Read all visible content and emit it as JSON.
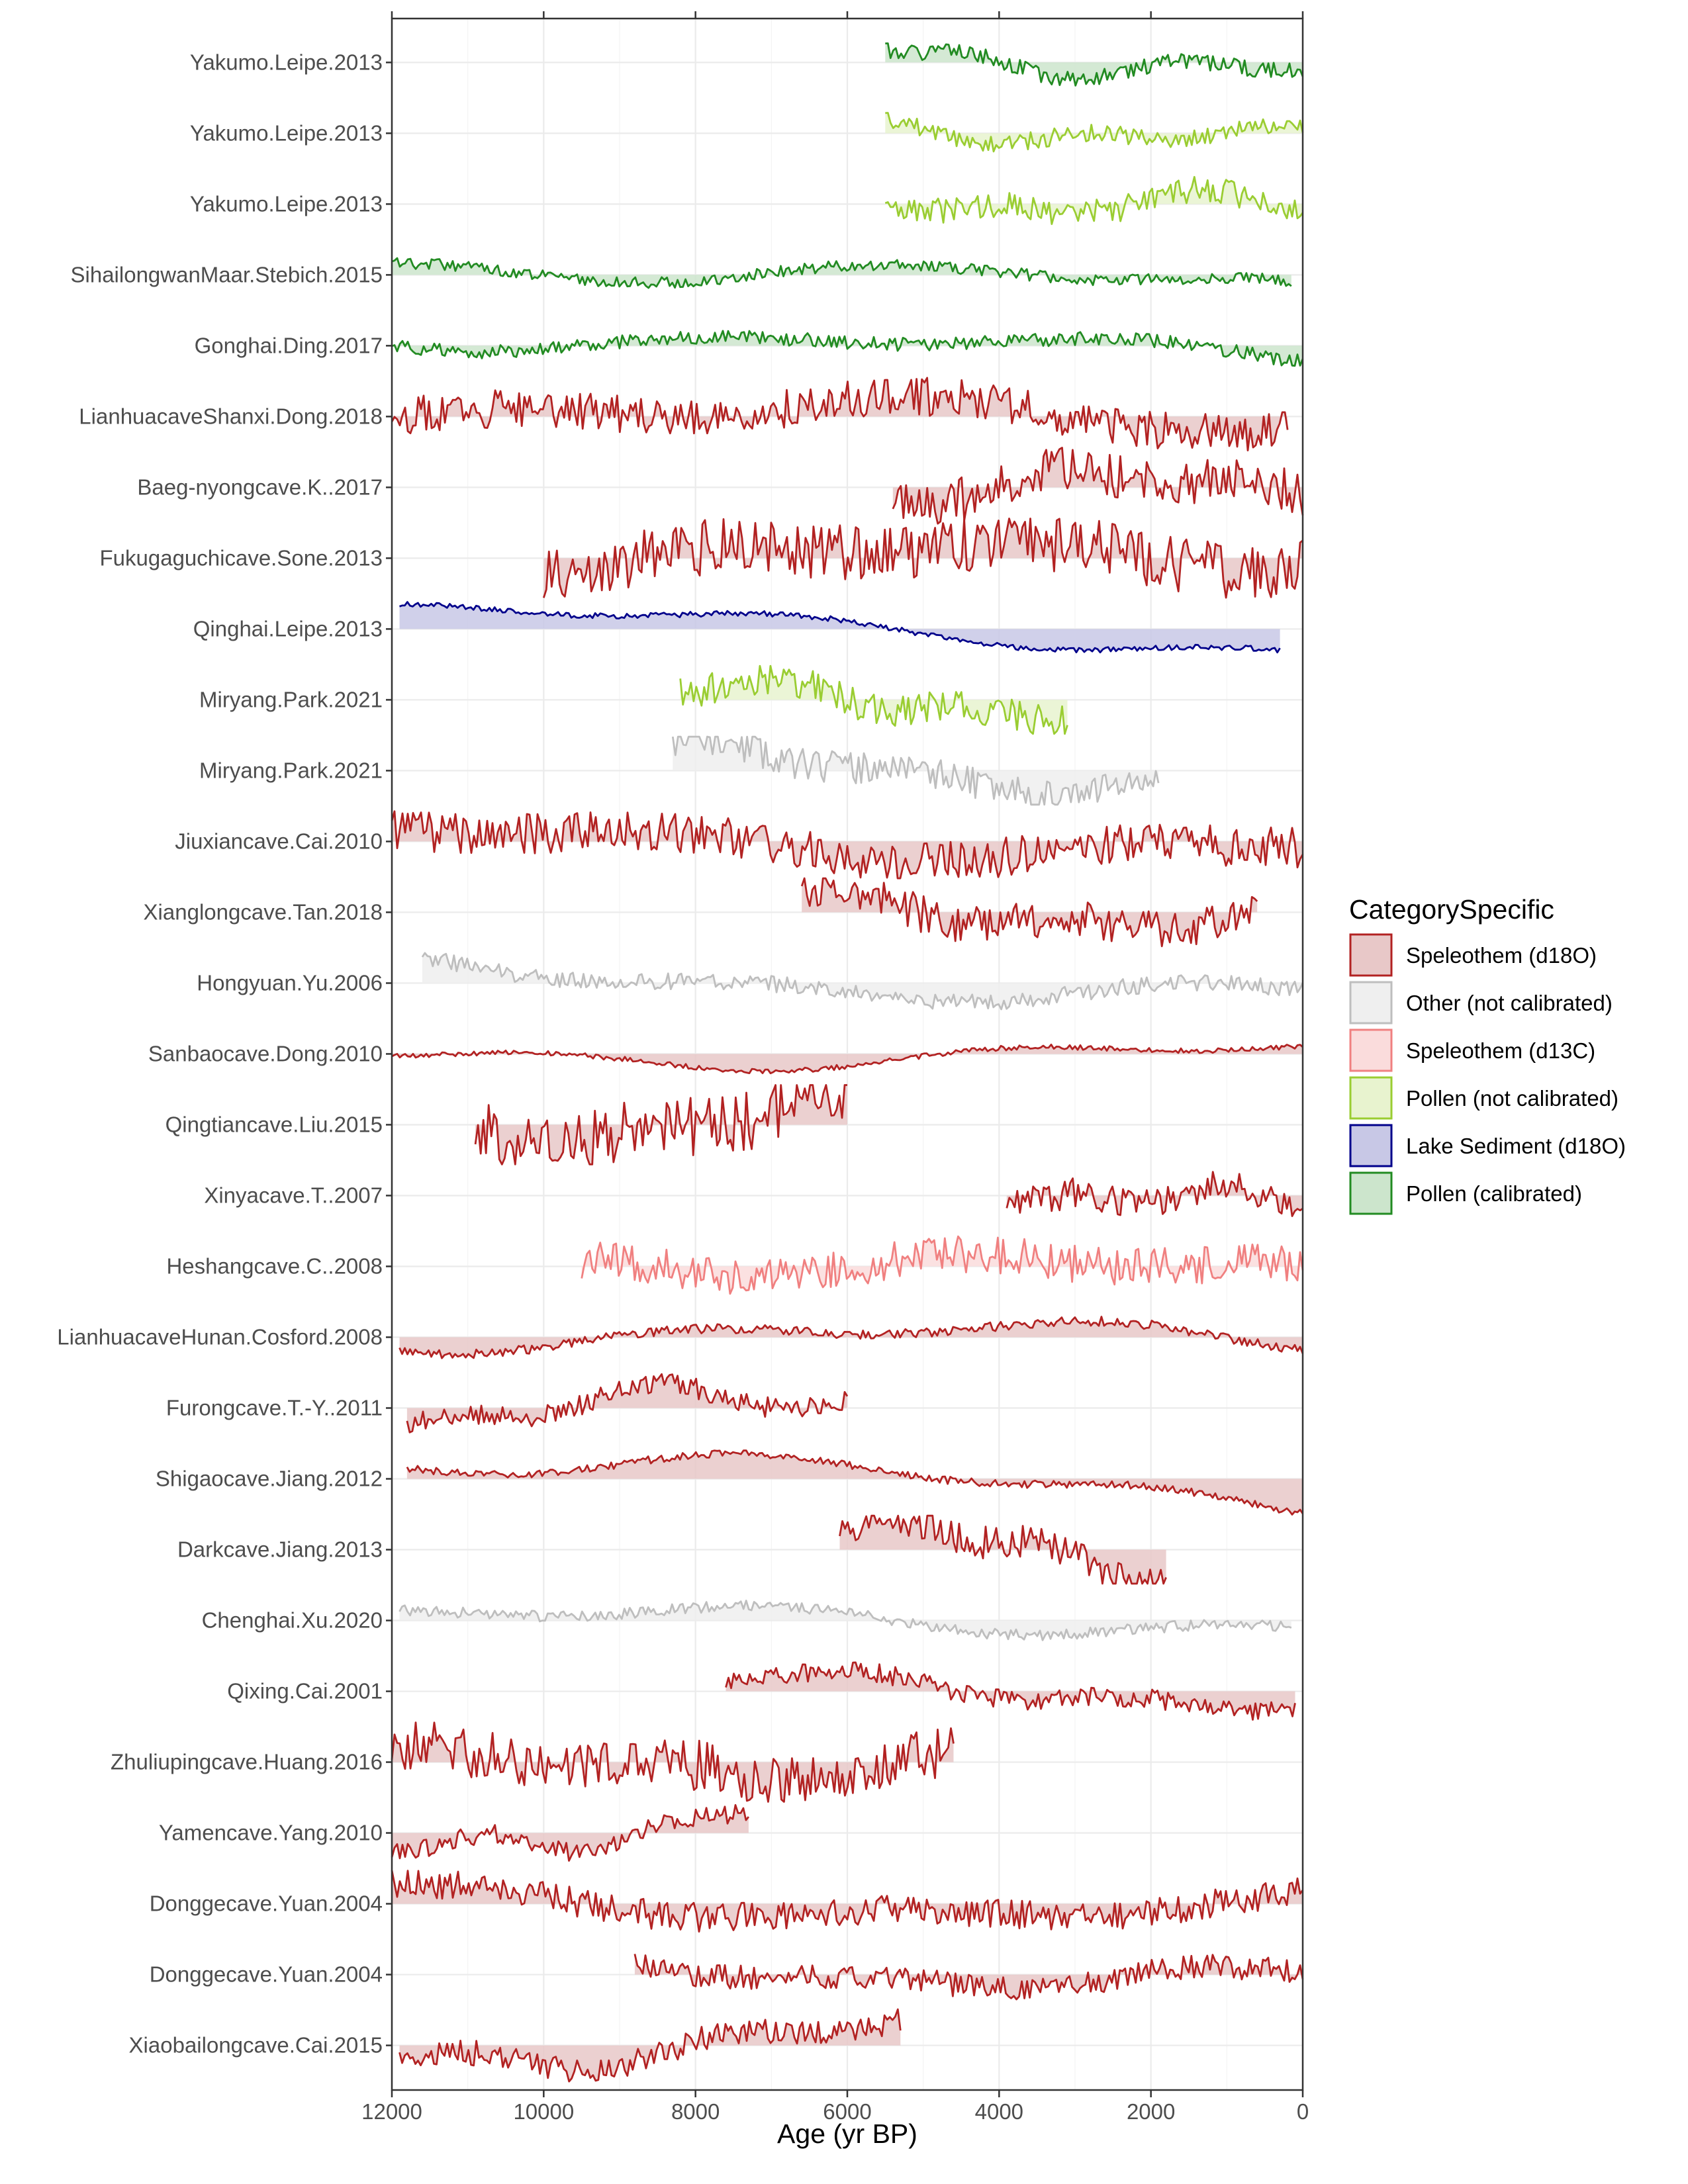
{
  "chart_data": {
    "type": "line",
    "title": "",
    "xlabel": "Age (yr BP)",
    "ylabel": "",
    "xlim": [
      12000,
      0
    ],
    "x_reversed": true,
    "x_ticks": [
      12000,
      10000,
      8000,
      6000,
      4000,
      2000,
      0
    ],
    "x_tick_labels": [
      "12000",
      "10000",
      "8000",
      "6000",
      "4000",
      "2000",
      "0"
    ],
    "grid": true,
    "legend": {
      "title": "CategorySpecific",
      "position": "right",
      "entries": [
        {
          "key": "spel_d18o",
          "label": "Speleothem (d18O)",
          "line": "#b22222",
          "fill": "#e8c8c8"
        },
        {
          "key": "other",
          "label": "Other (not calibrated)",
          "line": "#bebebe",
          "fill": "#efefef"
        },
        {
          "key": "spel_d13c",
          "label": "Speleothem (d13C)",
          "line": "#f08080",
          "fill": "#fadcdc"
        },
        {
          "key": "pollen_nc",
          "label": "Pollen (not calibrated)",
          "line": "#9acd32",
          "fill": "#e8f3cf"
        },
        {
          "key": "lake_d18o",
          "label": "Lake Sediment (d18O)",
          "line": "#00008b",
          "fill": "#c8c8e6"
        },
        {
          "key": "pollen_cal",
          "label": "Pollen (calibrated)",
          "line": "#228b22",
          "fill": "#cce5cc"
        }
      ]
    },
    "series": [
      {
        "name": "Yakumo.Leipe.2013",
        "category": "pollen_cal",
        "start": 5500,
        "end": 0,
        "amp": 0.6,
        "noise": 0.15,
        "trend": -0.4,
        "seed": 1
      },
      {
        "name": "Yakumo.Leipe.2013",
        "category": "pollen_nc",
        "start": 5500,
        "end": 0,
        "amp": 0.5,
        "noise": 0.2,
        "trend": -0.3,
        "seed": 2
      },
      {
        "name": "Yakumo.Leipe.2013",
        "category": "pollen_nc",
        "start": 5500,
        "end": 0,
        "amp": 0.6,
        "noise": 0.25,
        "trend": -0.2,
        "seed": 3
      },
      {
        "name": "SihailongwanMaar.Stebich.2015",
        "category": "pollen_cal",
        "start": 12000,
        "end": 150,
        "amp": 0.55,
        "noise": 0.12,
        "trend": -0.5,
        "seed": 4
      },
      {
        "name": "Gonghai.Ding.2017",
        "category": "pollen_cal",
        "start": 12000,
        "end": 0,
        "amp": 0.5,
        "noise": 0.15,
        "trend": -0.4,
        "seed": 5
      },
      {
        "name": "LianhuacaveShanxi.Dong.2018",
        "category": "spel_d18o",
        "start": 12000,
        "end": 200,
        "amp": 0.7,
        "noise": 0.3,
        "trend": -0.3,
        "seed": 6
      },
      {
        "name": "Baeg-nyongcave.K..2017",
        "category": "spel_d18o",
        "start": 5400,
        "end": 0,
        "amp": 0.7,
        "noise": 0.35,
        "trend": 0.1,
        "seed": 7
      },
      {
        "name": "Fukugaguchicave.Sone.2013",
        "category": "spel_d18o",
        "start": 10000,
        "end": 0,
        "amp": 0.7,
        "noise": 0.45,
        "trend": 0.2,
        "seed": 8
      },
      {
        "name": "Qinghai.Leipe.2013",
        "category": "lake_d18o",
        "start": 11900,
        "end": 300,
        "amp": 0.5,
        "noise": 0.06,
        "trend": -0.6,
        "seed": 9
      },
      {
        "name": "Miryang.Park.2021",
        "category": "pollen_nc",
        "start": 8200,
        "end": 3100,
        "amp": 0.6,
        "noise": 0.3,
        "trend": -0.2,
        "seed": 10
      },
      {
        "name": "Miryang.Park.2021",
        "category": "other",
        "start": 8300,
        "end": 1900,
        "amp": 0.6,
        "noise": 0.3,
        "trend": -0.4,
        "seed": 11
      },
      {
        "name": "Jiuxiancave.Cai.2010",
        "category": "spel_d18o",
        "start": 12000,
        "end": 0,
        "amp": 0.65,
        "noise": 0.35,
        "trend": -0.1,
        "seed": 12
      },
      {
        "name": "Xianglongcave.Tan.2018",
        "category": "spel_d18o",
        "start": 6600,
        "end": 600,
        "amp": 0.6,
        "noise": 0.35,
        "trend": -0.3,
        "seed": 13
      },
      {
        "name": "Hongyuan.Yu.2006",
        "category": "other",
        "start": 11600,
        "end": 0,
        "amp": 0.6,
        "noise": 0.15,
        "trend": -0.5,
        "seed": 14
      },
      {
        "name": "Sanbaocave.Dong.2010",
        "category": "spel_d18o",
        "start": 12000,
        "end": 0,
        "amp": 0.55,
        "noise": 0.05,
        "trend": 0.0,
        "seed": 15
      },
      {
        "name": "Qingtiancave.Liu.2015",
        "category": "spel_d18o",
        "start": 10900,
        "end": 6000,
        "amp": 0.7,
        "noise": 0.5,
        "trend": 0.2,
        "seed": 16
      },
      {
        "name": "Xinyacave.T..2007",
        "category": "spel_d18o",
        "start": 3900,
        "end": 0,
        "amp": 0.6,
        "noise": 0.3,
        "trend": -0.4,
        "seed": 17
      },
      {
        "name": "Heshangcave.C..2008",
        "category": "spel_d13c",
        "start": 9500,
        "end": 0,
        "amp": 0.6,
        "noise": 0.35,
        "trend": -0.3,
        "seed": 18
      },
      {
        "name": "LianhuacaveHunan.Cosford.2008",
        "category": "spel_d18o",
        "start": 11900,
        "end": 0,
        "amp": 0.65,
        "noise": 0.08,
        "trend": -0.1,
        "seed": 19
      },
      {
        "name": "Furongcave.T.-Y..2011",
        "category": "spel_d18o",
        "start": 11800,
        "end": 6000,
        "amp": 0.75,
        "noise": 0.15,
        "trend": 0.2,
        "seed": 20
      },
      {
        "name": "Shigaocave.Jiang.2012",
        "category": "spel_d18o",
        "start": 11800,
        "end": 0,
        "amp": 0.7,
        "noise": 0.06,
        "trend": -0.5,
        "seed": 21
      },
      {
        "name": "Darkcave.Jiang.2013",
        "category": "spel_d18o",
        "start": 6100,
        "end": 1800,
        "amp": 0.6,
        "noise": 0.3,
        "trend": -0.6,
        "seed": 22
      },
      {
        "name": "Chenghai.Xu.2020",
        "category": "other",
        "start": 11900,
        "end": 150,
        "amp": 0.6,
        "noise": 0.1,
        "trend": 0.0,
        "seed": 23
      },
      {
        "name": "Qixing.Cai.2001",
        "category": "spel_d18o",
        "start": 7600,
        "end": 100,
        "amp": 0.55,
        "noise": 0.2,
        "trend": -0.2,
        "seed": 24
      },
      {
        "name": "Zhuliupingcave.Huang.2016",
        "category": "spel_d18o",
        "start": 12000,
        "end": 4600,
        "amp": 0.7,
        "noise": 0.4,
        "trend": 0.1,
        "seed": 25
      },
      {
        "name": "Yamencave.Yang.2010",
        "category": "spel_d18o",
        "start": 12000,
        "end": 7300,
        "amp": 0.7,
        "noise": 0.15,
        "trend": 0.6,
        "seed": 26
      },
      {
        "name": "Donggecave.Yuan.2004",
        "category": "spel_d18o",
        "start": 12000,
        "end": 0,
        "amp": 0.65,
        "noise": 0.25,
        "trend": -0.1,
        "seed": 27
      },
      {
        "name": "Donggecave.Yuan.2004",
        "category": "spel_d18o",
        "start": 8800,
        "end": 0,
        "amp": 0.55,
        "noise": 0.25,
        "trend": -0.2,
        "seed": 28
      },
      {
        "name": "Xiaobailongcave.Cai.2015",
        "category": "spel_d18o",
        "start": 11900,
        "end": 5300,
        "amp": 0.7,
        "noise": 0.2,
        "trend": 0.3,
        "seed": 29
      }
    ]
  }
}
